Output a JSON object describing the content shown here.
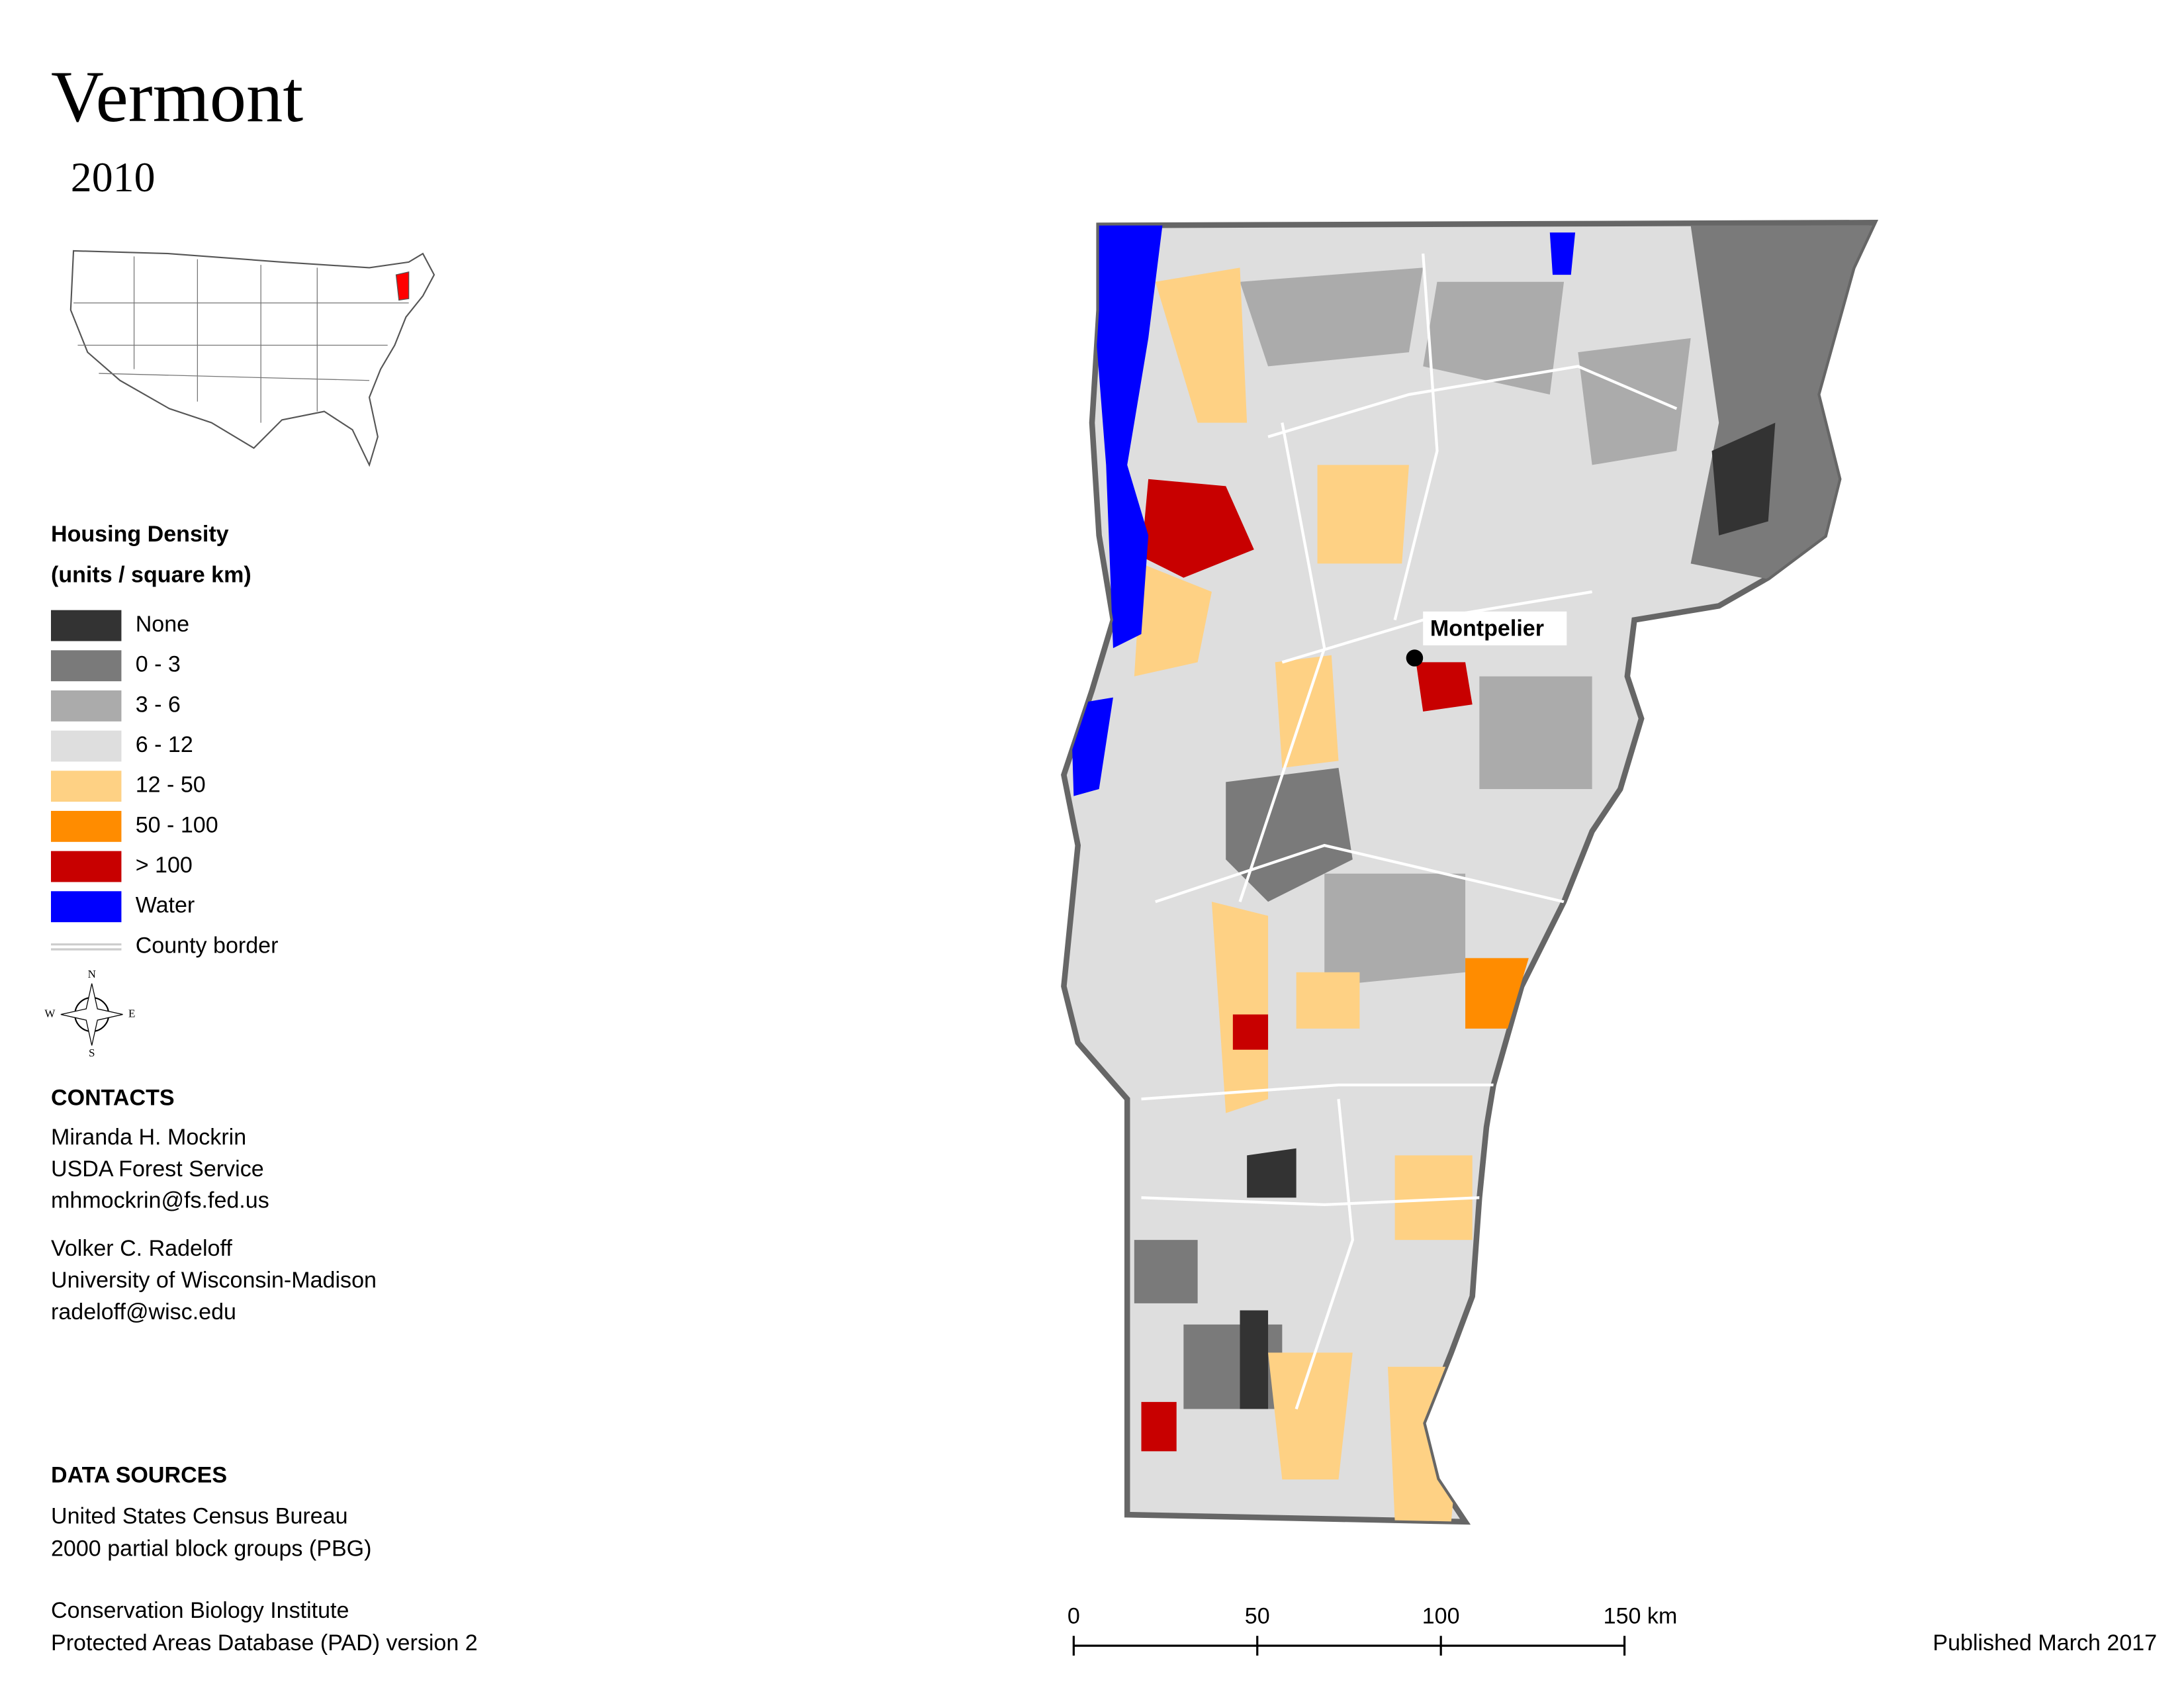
{
  "title": "Vermont",
  "year": "2010",
  "legend": {
    "title": "Housing Density",
    "subtitle": "(units / square km)",
    "items": [
      {
        "label": "None",
        "color": "#333333"
      },
      {
        "label": "0 - 3",
        "color": "#7a7a7a"
      },
      {
        "label": "3 - 6",
        "color": "#ababab"
      },
      {
        "label": "6 - 12",
        "color": "#dedede"
      },
      {
        "label": "12 - 50",
        "color": "#fed184"
      },
      {
        "label": "50 - 100",
        "color": "#ff8c00"
      },
      {
        "label": "> 100",
        "color": "#c80000"
      },
      {
        "label": "Water",
        "color": "#0000ff"
      },
      {
        "label": "County border",
        "color": "#cccccc"
      }
    ]
  },
  "map": {
    "city_label": "Montpelier"
  },
  "compass": {
    "n": "N",
    "e": "E",
    "s": "S",
    "w": "W"
  },
  "contacts": {
    "heading": "CONTACTS",
    "people": [
      [
        "Miranda H. Mockrin",
        "USDA Forest Service",
        "mhmockrin@fs.fed.us"
      ],
      [
        "Volker C. Radeloff",
        "University of Wisconsin-Madison",
        "radeloff@wisc.edu"
      ]
    ]
  },
  "data_sources": {
    "heading": "DATA SOURCES",
    "entries": [
      [
        "United States Census Bureau",
        "2000 partial block groups (PBG)"
      ],
      [
        "Conservation Biology Institute",
        "Protected Areas Database (PAD) version 2"
      ]
    ]
  },
  "scale_bar": {
    "ticks": [
      0,
      50,
      100,
      {
        "value": 150,
        "label": "150 km"
      }
    ]
  },
  "published": "Published March 2017"
}
